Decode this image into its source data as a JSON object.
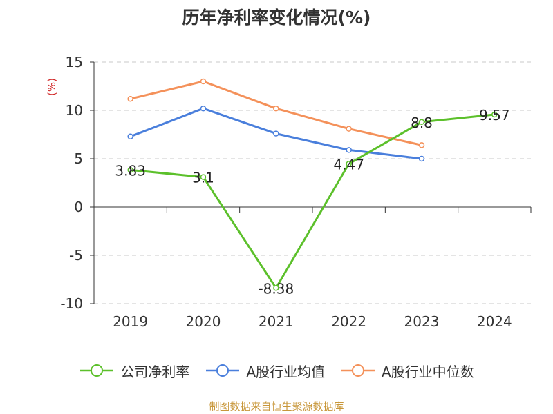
{
  "title": "历年净利率变化情况(%)",
  "source_note": "制图数据来自恒生聚源数据库",
  "chart_data": {
    "type": "line",
    "categories": [
      "2019",
      "2020",
      "2021",
      "2022",
      "2023",
      "2024"
    ],
    "ylabel": "(%)",
    "xlabel": "",
    "ylim": [
      -10,
      15
    ],
    "yticks": [
      15,
      10,
      5,
      0,
      -5,
      -10
    ],
    "grid": true,
    "legend_position": "bottom",
    "series": [
      {
        "name": "公司净利率",
        "color": "#5cc02b",
        "values": [
          3.83,
          3.1,
          -8.38,
          4.47,
          8.8,
          9.57
        ],
        "labels": [
          "3.83",
          "3.1",
          "-8.38",
          "4.47",
          "8.8",
          "9.57"
        ]
      },
      {
        "name": "A股行业均值",
        "color": "#4a7fdc",
        "values": [
          7.3,
          10.2,
          7.6,
          5.9,
          5.0,
          null
        ]
      },
      {
        "name": "A股行业中位数",
        "color": "#f4915a",
        "values": [
          11.2,
          13.0,
          10.2,
          8.1,
          6.4,
          null
        ]
      }
    ]
  }
}
